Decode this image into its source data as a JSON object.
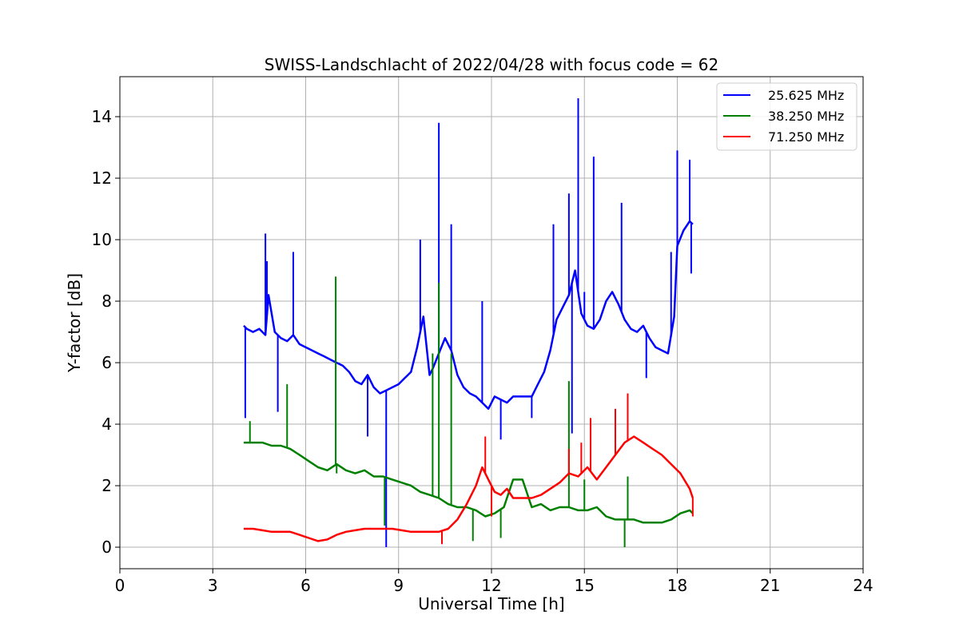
{
  "chart_data": {
    "type": "line",
    "title": "SWISS-Landschlacht of 2022/04/28 with focus code = 62",
    "xlabel": "Universal Time [h]",
    "ylabel": "Y-factor [dB]",
    "xlim": [
      0,
      24
    ],
    "ylim": [
      -0.7,
      15.3
    ],
    "xticks": [
      0,
      3,
      6,
      9,
      12,
      15,
      18,
      21,
      24
    ],
    "yticks": [
      0,
      2,
      4,
      6,
      8,
      10,
      12,
      14
    ],
    "grid": true,
    "legend_position": "top-right",
    "series": [
      {
        "name": "25.625 MHz",
        "color": "#0000ff",
        "x": [
          4.0,
          4.1,
          4.3,
          4.5,
          4.7,
          4.8,
          5.0,
          5.2,
          5.4,
          5.6,
          5.8,
          6.0,
          6.2,
          6.4,
          6.6,
          6.8,
          7.0,
          7.2,
          7.4,
          7.6,
          7.8,
          8.0,
          8.2,
          8.4,
          8.6,
          8.8,
          9.0,
          9.2,
          9.4,
          9.6,
          9.8,
          10.0,
          10.1,
          10.3,
          10.5,
          10.7,
          10.9,
          11.1,
          11.3,
          11.5,
          11.7,
          11.9,
          12.1,
          12.3,
          12.5,
          12.7,
          13.0,
          13.3,
          13.5,
          13.7,
          13.9,
          14.1,
          14.3,
          14.5,
          14.7,
          14.9,
          15.1,
          15.3,
          15.5,
          15.7,
          15.9,
          16.1,
          16.3,
          16.5,
          16.7,
          16.9,
          17.1,
          17.3,
          17.5,
          17.7,
          17.9,
          18.0,
          18.2,
          18.4,
          18.5
        ],
        "y": [
          7.2,
          7.1,
          7.0,
          7.1,
          6.9,
          8.2,
          7.0,
          6.8,
          6.7,
          6.9,
          6.6,
          6.5,
          6.4,
          6.3,
          6.2,
          6.1,
          6.0,
          5.9,
          5.7,
          5.4,
          5.3,
          5.6,
          5.2,
          5.0,
          5.1,
          5.2,
          5.3,
          5.5,
          5.7,
          6.5,
          7.5,
          5.6,
          5.8,
          6.3,
          6.8,
          6.4,
          5.6,
          5.2,
          5.0,
          4.9,
          4.7,
          4.5,
          4.9,
          4.8,
          4.7,
          4.9,
          4.9,
          4.9,
          5.3,
          5.7,
          6.4,
          7.4,
          7.8,
          8.2,
          9.0,
          7.6,
          7.2,
          7.1,
          7.4,
          8.0,
          8.3,
          7.9,
          7.4,
          7.1,
          7.0,
          7.2,
          6.8,
          6.5,
          6.4,
          6.3,
          7.5,
          9.8,
          10.3,
          10.6,
          10.5
        ],
        "spikes": [
          [
            4.05,
            4.2
          ],
          [
            4.7,
            10.2
          ],
          [
            4.75,
            9.3
          ],
          [
            5.1,
            4.4
          ],
          [
            5.6,
            9.6
          ],
          [
            8.0,
            3.6
          ],
          [
            8.6,
            0.0
          ],
          [
            9.7,
            10.0
          ],
          [
            10.3,
            13.8
          ],
          [
            10.7,
            10.5
          ],
          [
            11.7,
            8.0
          ],
          [
            12.3,
            3.5
          ],
          [
            13.3,
            4.2
          ],
          [
            14.0,
            10.5
          ],
          [
            14.5,
            11.5
          ],
          [
            14.6,
            3.7
          ],
          [
            14.8,
            14.6
          ],
          [
            15.0,
            8.3
          ],
          [
            15.3,
            12.7
          ],
          [
            16.2,
            11.2
          ],
          [
            17.0,
            5.5
          ],
          [
            17.8,
            9.6
          ],
          [
            18.0,
            12.9
          ],
          [
            18.4,
            12.6
          ],
          [
            18.45,
            8.9
          ]
        ]
      },
      {
        "name": "38.250 MHz",
        "color": "#008000",
        "x": [
          4.0,
          4.3,
          4.6,
          4.9,
          5.2,
          5.5,
          5.8,
          6.1,
          6.4,
          6.7,
          7.0,
          7.3,
          7.6,
          7.9,
          8.2,
          8.5,
          8.8,
          9.1,
          9.4,
          9.7,
          10.0,
          10.3,
          10.6,
          10.9,
          11.2,
          11.5,
          11.8,
          12.1,
          12.4,
          12.7,
          13.0,
          13.3,
          13.6,
          13.9,
          14.2,
          14.5,
          14.8,
          15.1,
          15.4,
          15.7,
          16.0,
          16.3,
          16.6,
          16.9,
          17.2,
          17.5,
          17.8,
          18.1,
          18.4,
          18.5
        ],
        "y": [
          3.4,
          3.4,
          3.4,
          3.3,
          3.3,
          3.2,
          3.0,
          2.8,
          2.6,
          2.5,
          2.7,
          2.5,
          2.4,
          2.5,
          2.3,
          2.3,
          2.2,
          2.1,
          2.0,
          1.8,
          1.7,
          1.6,
          1.4,
          1.3,
          1.3,
          1.2,
          1.0,
          1.1,
          1.3,
          2.2,
          2.2,
          1.3,
          1.4,
          1.2,
          1.3,
          1.3,
          1.2,
          1.2,
          1.3,
          1.0,
          0.9,
          0.9,
          0.9,
          0.8,
          0.8,
          0.8,
          0.9,
          1.1,
          1.2,
          1.1
        ],
        "spikes": [
          [
            4.2,
            4.1
          ],
          [
            5.4,
            5.3
          ],
          [
            6.97,
            8.8
          ],
          [
            7.0,
            2.4
          ],
          [
            8.55,
            0.7
          ],
          [
            10.1,
            6.3
          ],
          [
            10.3,
            8.6
          ],
          [
            10.7,
            6.3
          ],
          [
            11.4,
            0.2
          ],
          [
            12.3,
            0.3
          ],
          [
            14.5,
            5.4
          ],
          [
            15.0,
            2.2
          ],
          [
            16.3,
            0.0
          ],
          [
            16.4,
            2.3
          ]
        ]
      },
      {
        "name": "71.250 MHz",
        "color": "#ff0000",
        "x": [
          4.0,
          4.3,
          4.6,
          4.9,
          5.2,
          5.5,
          5.8,
          6.1,
          6.4,
          6.7,
          7.0,
          7.3,
          7.6,
          7.9,
          8.2,
          8.5,
          8.8,
          9.1,
          9.4,
          9.7,
          10.0,
          10.3,
          10.6,
          10.9,
          11.2,
          11.5,
          11.7,
          11.9,
          12.1,
          12.3,
          12.5,
          12.7,
          13.0,
          13.3,
          13.6,
          13.9,
          14.2,
          14.5,
          14.8,
          15.1,
          15.4,
          15.7,
          16.0,
          16.3,
          16.6,
          16.9,
          17.2,
          17.5,
          17.8,
          18.1,
          18.4,
          18.5
        ],
        "y": [
          0.6,
          0.6,
          0.55,
          0.5,
          0.5,
          0.5,
          0.4,
          0.3,
          0.2,
          0.25,
          0.4,
          0.5,
          0.55,
          0.6,
          0.6,
          0.6,
          0.6,
          0.55,
          0.5,
          0.5,
          0.5,
          0.5,
          0.6,
          0.9,
          1.4,
          2.0,
          2.6,
          2.2,
          1.8,
          1.7,
          1.9,
          1.6,
          1.6,
          1.6,
          1.7,
          1.9,
          2.1,
          2.4,
          2.3,
          2.6,
          2.2,
          2.6,
          3.0,
          3.4,
          3.6,
          3.4,
          3.2,
          3.0,
          2.7,
          2.4,
          1.9,
          1.6
        ],
        "spikes": [
          [
            10.4,
            0.1
          ],
          [
            11.8,
            3.6
          ],
          [
            12.0,
            1.0
          ],
          [
            14.5,
            3.2
          ],
          [
            14.9,
            3.4
          ],
          [
            15.2,
            4.2
          ],
          [
            16.0,
            4.5
          ],
          [
            16.4,
            5.0
          ],
          [
            18.5,
            1.0
          ]
        ]
      }
    ]
  }
}
